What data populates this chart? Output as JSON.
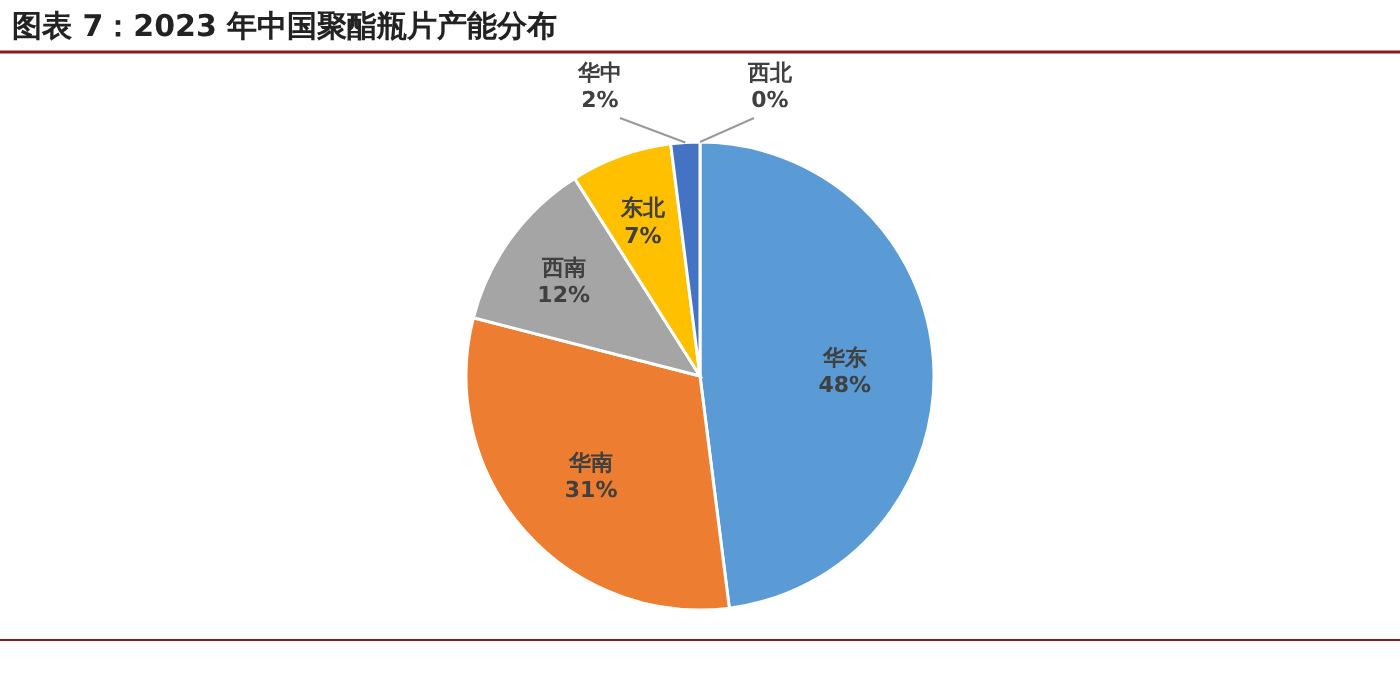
{
  "chart_data": {
    "type": "pie",
    "title": "图表 7：2023 年中国聚酯瓶片产能分布",
    "categories": [
      "华东",
      "华南",
      "西南",
      "东北",
      "华中",
      "西北"
    ],
    "values": [
      48,
      31,
      12,
      7,
      2,
      0
    ],
    "colors": [
      "#5b9bd5",
      "#ed7d31",
      "#a5a5a5",
      "#ffc000",
      "#4472c4",
      "#70ad47"
    ],
    "value_labels": [
      "48%",
      "31%",
      "12%",
      "7%",
      "2%",
      "0%"
    ]
  }
}
